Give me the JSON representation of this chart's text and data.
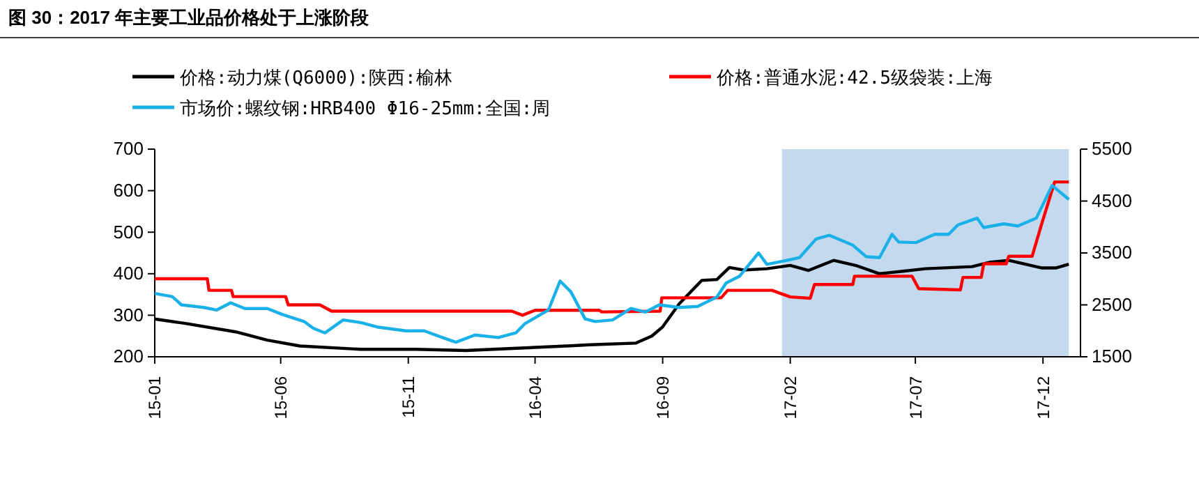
{
  "chart_data": {
    "type": "line",
    "title": "图 30：2017 年主要工业品价格处于上涨阶段",
    "xlim": [
      "2015-01-01",
      "2018-01-15"
    ],
    "xticks": [
      {
        "value": "2015-01-01",
        "label": "15-01"
      },
      {
        "value": "2015-06-01",
        "label": "15-06"
      },
      {
        "value": "2015-11-01",
        "label": "15-11"
      },
      {
        "value": "2016-04-01",
        "label": "16-04"
      },
      {
        "value": "2016-09-01",
        "label": "16-09"
      },
      {
        "value": "2017-02-01",
        "label": "17-02"
      },
      {
        "value": "2017-07-01",
        "label": "17-07"
      },
      {
        "value": "2017-12-01",
        "label": "17-12"
      }
    ],
    "ylim": [
      200,
      700
    ],
    "yticks": [
      200,
      300,
      400,
      500,
      600,
      700
    ],
    "y2lim": [
      1500,
      5500
    ],
    "y2ticks": [
      1500,
      2500,
      3500,
      4500,
      5500
    ],
    "grid": false,
    "legend": "top",
    "marker": "none",
    "line_style": "solid",
    "bands": [
      {
        "axis": "x",
        "from": "2017-01-22",
        "to": "2018-01-01",
        "color": "#c5d9ee"
      }
    ],
    "series": [
      {
        "name": "价格:动力煤(Q6000):陕西:榆林",
        "color": "#000000",
        "x": [
          "2015-01-01",
          "2015-02-08",
          "2015-04-08",
          "2015-05-16",
          "2015-06-24",
          "2015-09-05",
          "2015-11-10",
          "2016-01-09",
          "2016-03-15",
          "2016-05-09",
          "2016-06-06",
          "2016-07-31",
          "2016-08-19",
          "2016-09-01",
          "2016-09-21",
          "2016-10-18",
          "2016-11-05",
          "2016-11-20",
          "2016-12-07",
          "2017-01-04",
          "2017-02-01",
          "2017-02-23",
          "2017-03-25",
          "2017-04-22",
          "2017-05-19",
          "2017-06-16",
          "2017-07-13",
          "2017-09-07",
          "2017-09-29",
          "2017-10-21",
          "2017-11-29",
          "2017-12-17",
          "2018-01-01"
        ],
        "values": [
          291,
          280,
          260,
          240,
          226,
          218,
          218,
          215,
          221,
          226,
          229,
          233,
          250,
          272,
          328,
          384,
          386,
          415,
          409,
          412,
          420,
          408,
          432,
          419,
          400,
          406,
          412,
          417,
          428,
          432,
          414,
          414,
          423
        ]
      },
      {
        "name": "价格:普通水泥:42.5级袋装:上海",
        "color": "#ff0000",
        "x": [
          "2015-01-01",
          "2015-03-05",
          "2015-03-07",
          "2015-04-03",
          "2015-04-05",
          "2015-06-07",
          "2015-06-10",
          "2015-07-18",
          "2015-08-01",
          "2016-03-04",
          "2016-03-17",
          "2016-04-01",
          "2016-06-17",
          "2016-06-20",
          "2016-08-29",
          "2016-08-31",
          "2016-11-10",
          "2016-11-18",
          "2017-01-10",
          "2017-02-01",
          "2017-02-25",
          "2017-03-02",
          "2017-04-17",
          "2017-04-19",
          "2017-06-27",
          "2017-07-05",
          "2017-08-24",
          "2017-08-27",
          "2017-09-18",
          "2017-09-21",
          "2017-10-18",
          "2017-10-21",
          "2017-11-18",
          "2017-11-29",
          "2017-12-15",
          "2018-01-01"
        ],
        "values": [
          388,
          388,
          360,
          360,
          345,
          345,
          325,
          325,
          310,
          310,
          300,
          312,
          312,
          308,
          310,
          342,
          342,
          360,
          360,
          344,
          341,
          374,
          374,
          394,
          394,
          364,
          361,
          391,
          391,
          424,
          424,
          442,
          442,
          517,
          621,
          621
        ]
      },
      {
        "name": "市场价:螺纹钢:HRB400 Φ16-25mm:全国:周",
        "color": "#1ab0e8",
        "axis": "y2",
        "x": [
          "2015-01-01",
          "2015-01-22",
          "2015-02-02",
          "2015-03-01",
          "2015-03-16",
          "2015-04-02",
          "2015-04-19",
          "2015-05-16",
          "2015-06-02",
          "2015-06-29",
          "2015-07-10",
          "2015-07-24",
          "2015-08-15",
          "2015-09-05",
          "2015-09-26",
          "2015-10-29",
          "2015-11-20",
          "2015-12-12",
          "2015-12-28",
          "2016-01-20",
          "2016-02-17",
          "2016-03-09",
          "2016-03-20",
          "2016-04-17",
          "2016-05-01",
          "2016-05-14",
          "2016-05-31",
          "2016-06-12",
          "2016-07-03",
          "2016-07-25",
          "2016-08-11",
          "2016-08-28",
          "2016-09-21",
          "2016-10-13",
          "2016-11-05",
          "2016-11-16",
          "2016-12-02",
          "2016-12-25",
          "2017-01-04",
          "2017-02-01",
          "2017-02-12",
          "2017-03-04",
          "2017-03-20",
          "2017-04-17",
          "2017-05-03",
          "2017-05-19",
          "2017-06-03",
          "2017-06-11",
          "2017-07-02",
          "2017-07-24",
          "2017-08-10",
          "2017-08-21",
          "2017-09-13",
          "2017-09-21",
          "2017-10-15",
          "2017-11-01",
          "2017-11-23",
          "2017-12-12",
          "2018-01-01"
        ],
        "values": [
          2720,
          2660,
          2500,
          2450,
          2400,
          2540,
          2430,
          2430,
          2320,
          2180,
          2050,
          1960,
          2210,
          2160,
          2070,
          2000,
          2000,
          1870,
          1780,
          1920,
          1870,
          1960,
          2140,
          2400,
          2960,
          2750,
          2230,
          2180,
          2210,
          2430,
          2360,
          2500,
          2450,
          2470,
          2650,
          2920,
          3050,
          3500,
          3280,
          3370,
          3410,
          3770,
          3840,
          3650,
          3430,
          3410,
          3860,
          3710,
          3700,
          3860,
          3860,
          4040,
          4170,
          3990,
          4060,
          4020,
          4170,
          4800,
          4530
        ]
      }
    ]
  }
}
